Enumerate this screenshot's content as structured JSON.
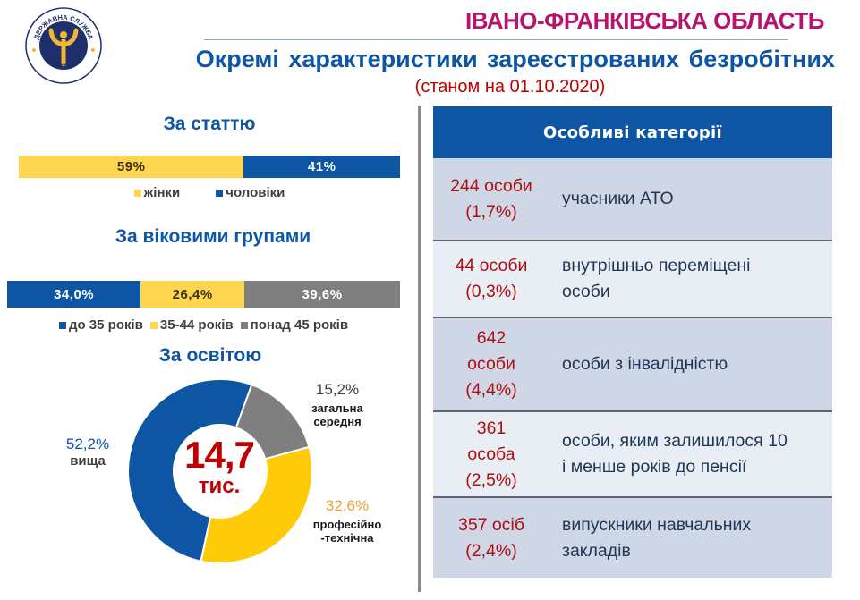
{
  "header": {
    "logo": {
      "text_top": "ДЕРЖАВНА СЛУЖБА",
      "text_bottom": "ЗАЙНЯТОСТІ",
      "colors": {
        "navy": "#1f2f6b",
        "gold": "#f2b632"
      }
    },
    "region": "ІВАНО-ФРАНКІВСЬКА ОБЛАСТЬ",
    "title": "Окремі характеристики зареєстрованих безробітних",
    "date_note": "(станом на 01.10.2020)"
  },
  "colors": {
    "blue": "#0e56a4",
    "yellow": "#fdd54f",
    "yellow_donut": "#ffca08",
    "gray": "#7f7f7f",
    "red": "#c00000",
    "magenta": "#b5156b"
  },
  "gender": {
    "title": "За статтю",
    "segments": [
      {
        "label": "жінки",
        "value_label": "59%",
        "value": 59
      },
      {
        "label": "чоловіки",
        "value_label": "41%",
        "value": 41
      }
    ]
  },
  "age": {
    "title": "За віковими групами",
    "segments": [
      {
        "label": "до 35 років",
        "value_label": "34,0%",
        "value": 34.0
      },
      {
        "label": "35-44 років",
        "value_label": "26,4%",
        "value": 26.4
      },
      {
        "label": "понад 45 років",
        "value_label": "39,6%",
        "value": 39.6
      }
    ]
  },
  "education": {
    "title": "За освітою",
    "total_value": "14,7",
    "total_unit": "тис.",
    "segments": [
      {
        "pct": "52,2%",
        "label": "вища",
        "value": 52.2
      },
      {
        "pct": "15,2%",
        "label_line1": "загальна",
        "label_line2": "середня",
        "value": 15.2
      },
      {
        "pct": "32,6%",
        "label_line1": "професійно",
        "label_line2": "-технічна",
        "value": 32.6
      }
    ]
  },
  "categories": {
    "header": "Особливі категорії",
    "rows": [
      {
        "count": "244 особи\n(1,7%)",
        "description": "учасники АТО"
      },
      {
        "count": "44 особи\n(0,3%)",
        "description": "внутрішньо переміщені\nособи"
      },
      {
        "count": "642\nособи\n(4,4%)",
        "description": "особи з інвалідністю"
      },
      {
        "count": "361\nособа\n(2,5%)",
        "description": "особи, яким залишилося 10\nі менше років до пенсії"
      },
      {
        "count": "357 осіб\n(2,4%)",
        "description": "випускники навчальних\nзакладів"
      }
    ]
  },
  "chart_data": [
    {
      "type": "bar",
      "orientation": "horizontal-stacked-100",
      "title": "За статтю",
      "categories": [
        "жінки",
        "чоловіки"
      ],
      "values": [
        59,
        41
      ],
      "unit": "%",
      "legend_position": "bottom"
    },
    {
      "type": "bar",
      "orientation": "horizontal-stacked-100",
      "title": "За віковими групами",
      "categories": [
        "до 35 років",
        "35-44 років",
        "понад 45 років"
      ],
      "values": [
        34.0,
        26.4,
        39.6
      ],
      "unit": "%",
      "legend_position": "bottom"
    },
    {
      "type": "pie",
      "variant": "donut",
      "title": "За освітою",
      "center_label": "14,7 тис.",
      "categories": [
        "вища",
        "загальна середня",
        "професійно-технічна"
      ],
      "values": [
        52.2,
        15.2,
        32.6
      ],
      "unit": "%"
    },
    {
      "type": "table",
      "title": "Особливі категорії",
      "columns": [
        "count",
        "category"
      ],
      "rows": [
        [
          "244 особи (1,7%)",
          "учасники АТО"
        ],
        [
          "44 особи (0,3%)",
          "внутрішньо переміщені особи"
        ],
        [
          "642 особи (4,4%)",
          "особи з інвалідністю"
        ],
        [
          "361 особа (2,5%)",
          "особи, яким залишилося 10 і менше років до пенсії"
        ],
        [
          "357 осіб (2,4%)",
          "випускники навчальних закладів"
        ]
      ]
    }
  ]
}
